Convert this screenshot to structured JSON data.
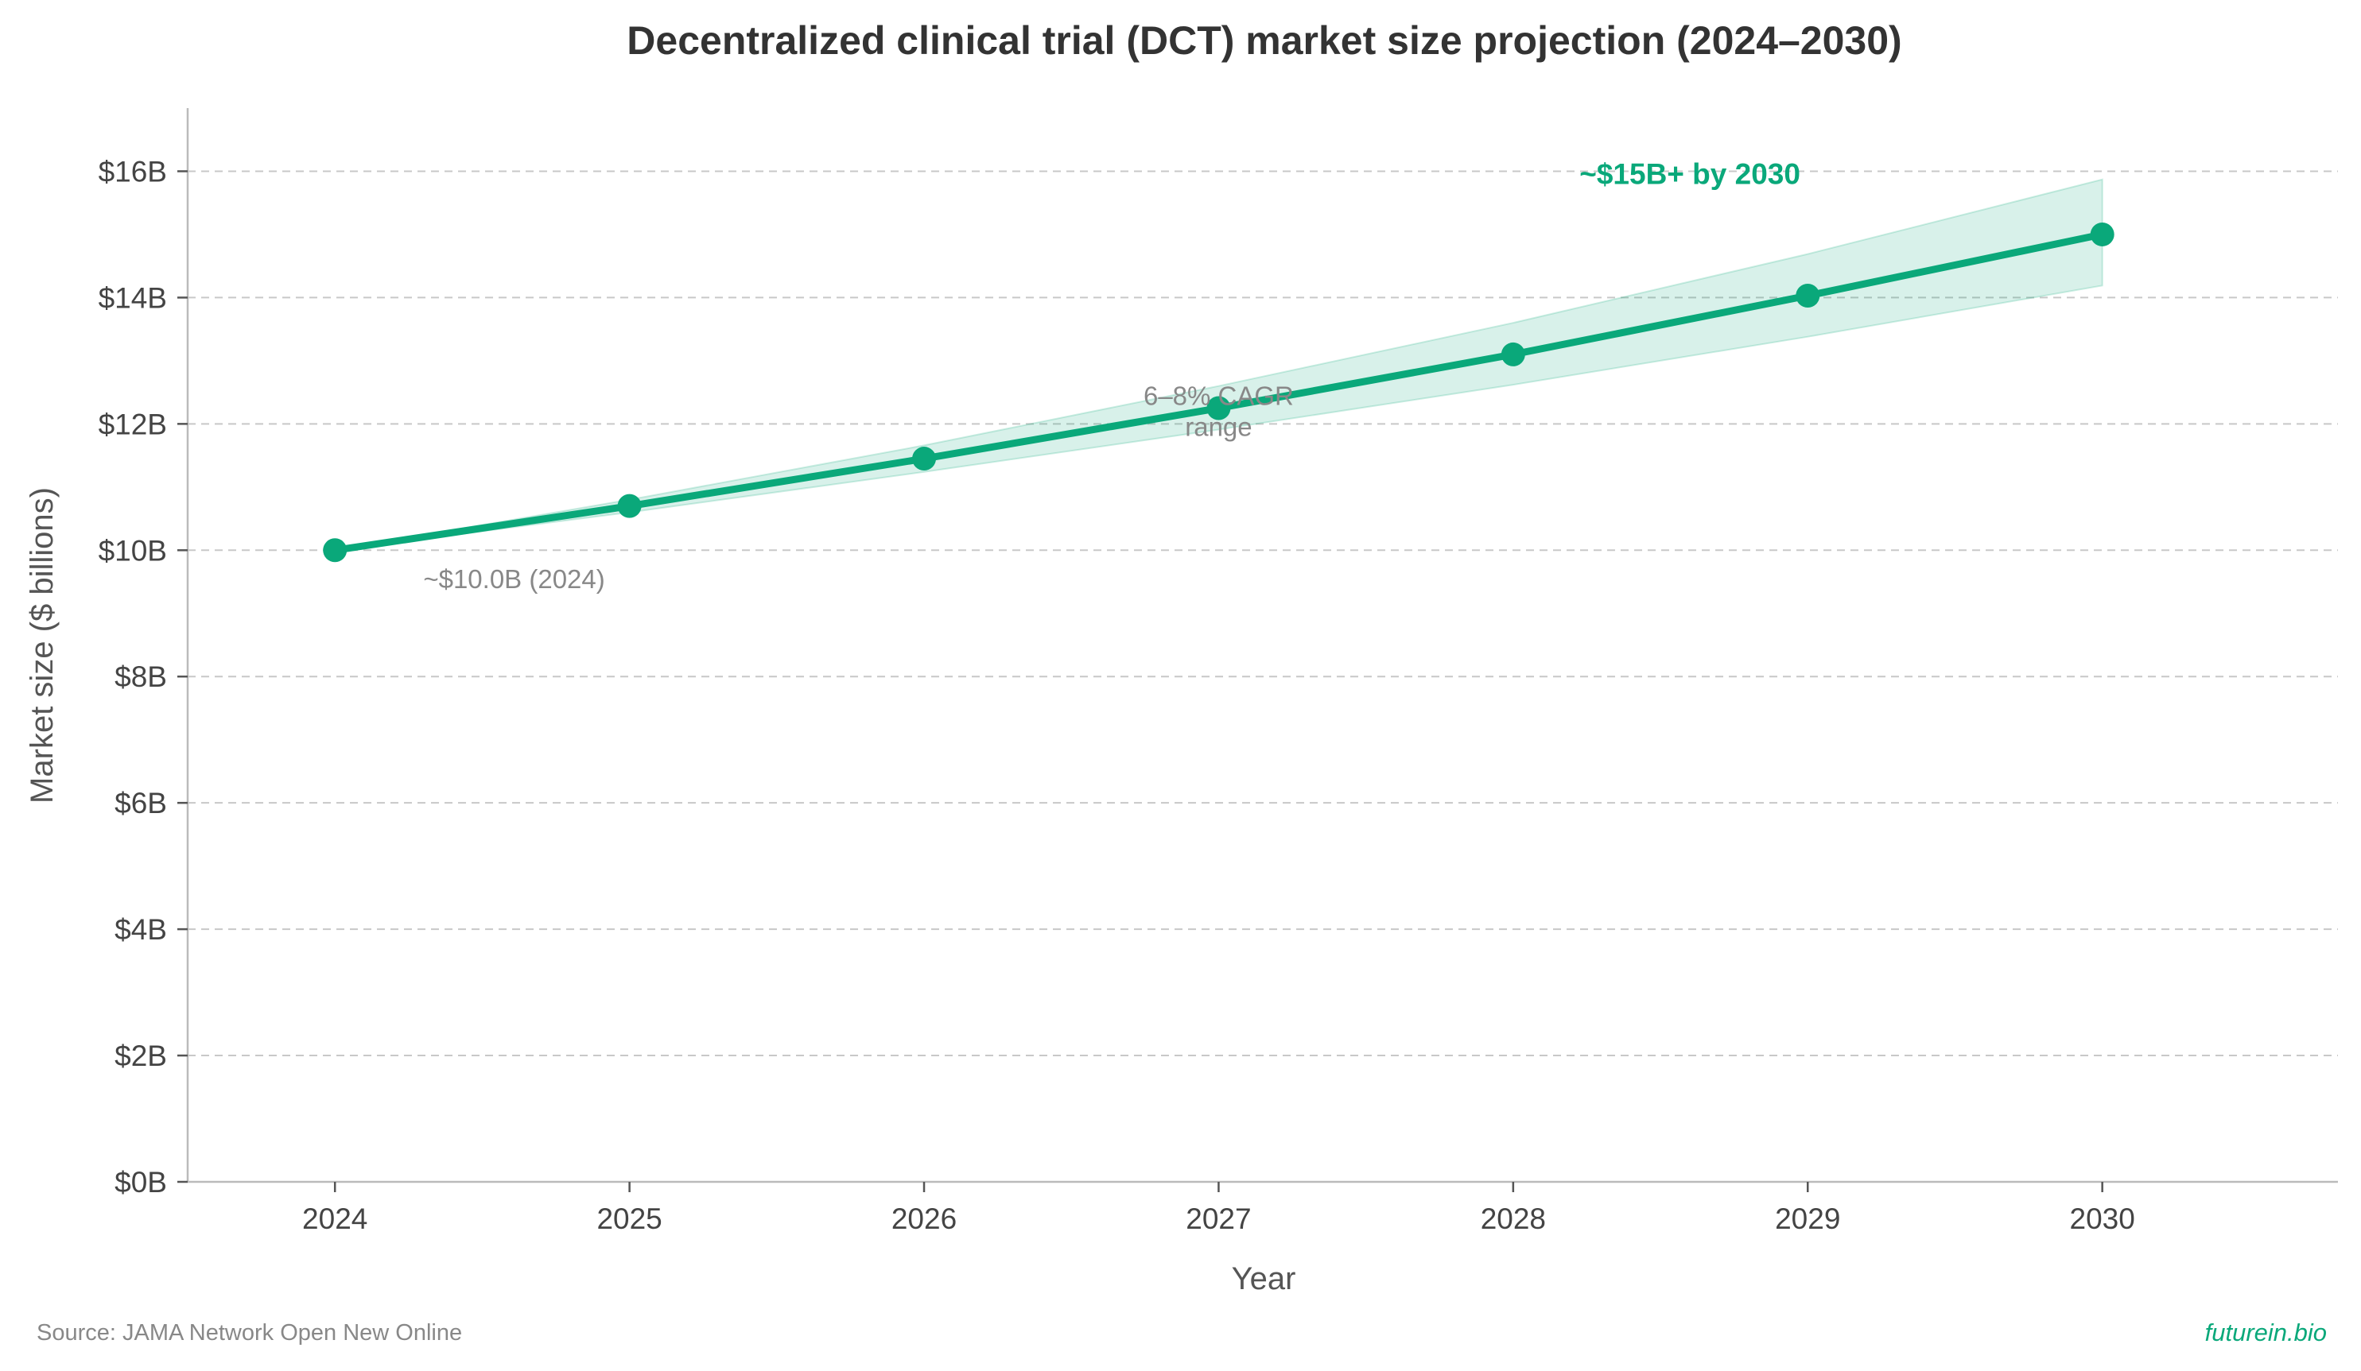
{
  "chart_data": {
    "type": "line",
    "title": "Decentralized clinical trial (DCT) market size projection (2024–2030)",
    "xlabel": "Year",
    "ylabel": "Market size ($ billions)",
    "x": [
      2024,
      2025,
      2026,
      2027,
      2028,
      2029,
      2030
    ],
    "x_tick_labels": [
      "2024",
      "2025",
      "2026",
      "2027",
      "2028",
      "2029",
      "2030"
    ],
    "xlim": [
      2023.5,
      2030.8
    ],
    "ylim": [
      0,
      17
    ],
    "y_ticks": [
      0,
      2,
      4,
      6,
      8,
      10,
      12,
      14,
      16
    ],
    "y_tick_labels": [
      "$0B",
      "$2B",
      "$4B",
      "$6B",
      "$8B",
      "$10B",
      "$12B",
      "$14B",
      "$16B"
    ],
    "grid": "horizontal dashed",
    "series": [
      {
        "values": [
          10.0,
          10.7,
          11.45,
          12.25,
          13.1,
          14.03,
          15.0
        ]
      }
    ],
    "band": {
      "lower": [
        10.0,
        10.6,
        11.24,
        11.91,
        12.62,
        13.38,
        14.19
      ],
      "upper": [
        10.0,
        10.8,
        11.66,
        12.6,
        13.6,
        14.69,
        15.87
      ]
    },
    "annotations": [
      {
        "text": "~$10.0B (2024)",
        "x": 2024.3,
        "y": 9.4
      },
      {
        "text_lines": [
          "6–8% CAGR",
          "range"
        ],
        "x": 2027.0,
        "y": 12.3
      },
      {
        "text": "~$15B+ by 2030",
        "x": 2028.6,
        "y": 15.8
      }
    ],
    "colors": {
      "line": "#0aa87a",
      "band": "#0aa87a",
      "grid": "#c8c8c8",
      "axis": "#bbbbbb",
      "highlight": "#0aa87a"
    }
  },
  "footer": {
    "source": "Source: JAMA Network Open New Online",
    "brand": "futurein.bio"
  }
}
